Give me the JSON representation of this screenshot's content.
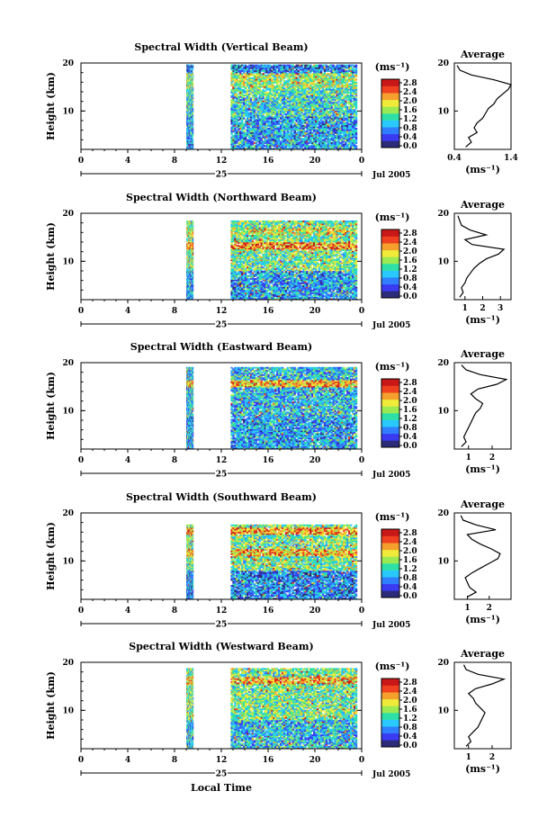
{
  "figure": {
    "xlabel": "Local Time",
    "date_label": "Jul 2005",
    "day_label": "25"
  },
  "colorbar": {
    "unit": "(ms⁻¹)",
    "ticks": [
      "2.8",
      "2.4",
      "2.0",
      "1.6",
      "1.2",
      "0.8",
      "0.4",
      "0.0"
    ],
    "colors": [
      "#2b2b7a",
      "#3a3af0",
      "#2f7fff",
      "#29c8ff",
      "#2de0a8",
      "#9bea54",
      "#f0ea3a",
      "#f5a02c",
      "#ef4020",
      "#c81818"
    ]
  },
  "chart_data": [
    {
      "type": "heatmap",
      "title": "Spectral Width (Vertical Beam)",
      "ylabel": "Height (km)",
      "xlim": [
        0,
        24
      ],
      "ylim": [
        2,
        20
      ],
      "xticks": [
        "0",
        "4",
        "8",
        "12",
        "16",
        "20",
        "0"
      ],
      "yticks": [
        "20",
        "10"
      ],
      "data_gaps_hours": [
        [
          0,
          9
        ],
        [
          9.6,
          12.8
        ]
      ],
      "avg_title": "Average",
      "avg_xlabel": "(ms⁻¹)",
      "avg_xlim": [
        0.4,
        1.4
      ],
      "avg_xticks": [
        "0.4",
        "1.4"
      ],
      "avg_profile": {
        "height": [
          2.5,
          3.5,
          4.5,
          5.5,
          6.5,
          7.5,
          8.5,
          9.5,
          10.5,
          11.5,
          12.5,
          13.5,
          14.5,
          15.5,
          16.5,
          17.5,
          18.5,
          19.5
        ],
        "width": [
          0.6,
          0.7,
          0.65,
          0.8,
          0.75,
          0.8,
          0.9,
          0.95,
          1.0,
          1.1,
          1.15,
          1.25,
          1.35,
          1.4,
          1.1,
          0.7,
          0.5,
          0.45
        ]
      }
    },
    {
      "type": "heatmap",
      "title": "Spectral Width (Northward Beam)",
      "ylabel": "Height (km)",
      "xlim": [
        0,
        24
      ],
      "ylim": [
        2,
        20
      ],
      "xticks": [
        "0",
        "4",
        "8",
        "12",
        "16",
        "20",
        "0"
      ],
      "yticks": [
        "20",
        "10"
      ],
      "data_gaps_hours": [
        [
          0,
          9
        ],
        [
          9.6,
          12.8
        ]
      ],
      "avg_title": "Average",
      "avg_xlabel": "(ms⁻¹)",
      "avg_xlim": [
        0.4,
        3.6
      ],
      "avg_xticks": [
        "1",
        "2",
        "3"
      ],
      "avg_profile": {
        "height": [
          2.5,
          3.5,
          4.5,
          5.5,
          6.5,
          7.5,
          8.5,
          9.5,
          10.5,
          11.5,
          12.5,
          13.5,
          14.5,
          15.5,
          16.5,
          17.5,
          18.5,
          19.5
        ],
        "width": [
          0.7,
          0.9,
          0.8,
          1.0,
          1.1,
          1.3,
          1.5,
          1.8,
          2.2,
          2.9,
          3.2,
          1.4,
          1.0,
          2.2,
          1.3,
          0.8,
          0.7,
          0.6
        ]
      }
    },
    {
      "type": "heatmap",
      "title": "Spectral Width (Eastward Beam)",
      "ylabel": "Height (km)",
      "xlim": [
        0,
        24
      ],
      "ylim": [
        2,
        20
      ],
      "xticks": [
        "0",
        "4",
        "8",
        "12",
        "16",
        "20",
        "0"
      ],
      "yticks": [
        "20",
        "10"
      ],
      "data_gaps_hours": [
        [
          0,
          9
        ],
        [
          9.6,
          12.8
        ]
      ],
      "avg_title": "Average",
      "avg_xlabel": "(ms⁻¹)",
      "avg_xlim": [
        0.4,
        2.8
      ],
      "avg_xticks": [
        "1",
        "2"
      ],
      "avg_profile": {
        "height": [
          2.5,
          3.5,
          4.5,
          5.5,
          6.5,
          7.5,
          8.5,
          9.5,
          10.5,
          11.5,
          12.5,
          13.5,
          14.5,
          15.5,
          16.5,
          17.5,
          18.5,
          19.5
        ],
        "width": [
          0.7,
          0.9,
          0.8,
          0.9,
          1.0,
          1.1,
          1.2,
          1.3,
          1.5,
          1.6,
          1.3,
          1.1,
          1.4,
          2.2,
          2.6,
          1.5,
          0.9,
          0.7
        ]
      }
    },
    {
      "type": "heatmap",
      "title": "Spectral Width (Southward Beam)",
      "ylabel": "Height (km)",
      "xlim": [
        0,
        24
      ],
      "ylim": [
        2,
        20
      ],
      "xticks": [
        "0",
        "4",
        "8",
        "12",
        "16",
        "20",
        "0"
      ],
      "yticks": [
        "20",
        "10"
      ],
      "data_gaps_hours": [
        [
          0,
          9
        ],
        [
          9.6,
          12.8
        ]
      ],
      "avg_title": "Average",
      "avg_xlabel": "(ms⁻¹)",
      "avg_xlim": [
        0.4,
        3.0
      ],
      "avg_xticks": [
        "1",
        "2"
      ],
      "avg_profile": {
        "height": [
          2.5,
          3.5,
          4.5,
          5.5,
          6.5,
          7.5,
          8.5,
          9.5,
          10.5,
          11.5,
          12.5,
          13.5,
          14.5,
          15.5,
          16.5,
          17.5,
          18.5,
          19.5
        ],
        "width": [
          1.0,
          1.4,
          1.1,
          1.0,
          0.9,
          1.2,
          1.6,
          2.0,
          2.4,
          2.5,
          2.1,
          1.6,
          1.2,
          1.0,
          2.3,
          1.4,
          0.8,
          0.7
        ]
      }
    },
    {
      "type": "heatmap",
      "title": "Spectral Width (Westward Beam)",
      "ylabel": "Height (km)",
      "xlim": [
        0,
        24
      ],
      "ylim": [
        2,
        20
      ],
      "xticks": [
        "0",
        "4",
        "8",
        "12",
        "16",
        "20",
        "0"
      ],
      "yticks": [
        "20",
        "10"
      ],
      "data_gaps_hours": [
        [
          0,
          9
        ],
        [
          9.6,
          12.8
        ]
      ],
      "avg_title": "Average",
      "avg_xlabel": "(ms⁻¹)",
      "avg_xlim": [
        0.4,
        2.8
      ],
      "avg_xticks": [
        "1",
        "2"
      ],
      "avg_profile": {
        "height": [
          2.5,
          3.5,
          4.5,
          5.5,
          6.5,
          7.5,
          8.5,
          9.5,
          10.5,
          11.5,
          12.5,
          13.5,
          14.5,
          15.5,
          16.5,
          17.5,
          18.5,
          19.5
        ],
        "width": [
          0.9,
          1.1,
          1.0,
          1.2,
          1.4,
          1.5,
          1.6,
          1.7,
          1.5,
          1.3,
          1.2,
          1.0,
          1.3,
          2.0,
          2.5,
          1.4,
          0.9,
          0.8
        ]
      }
    }
  ]
}
